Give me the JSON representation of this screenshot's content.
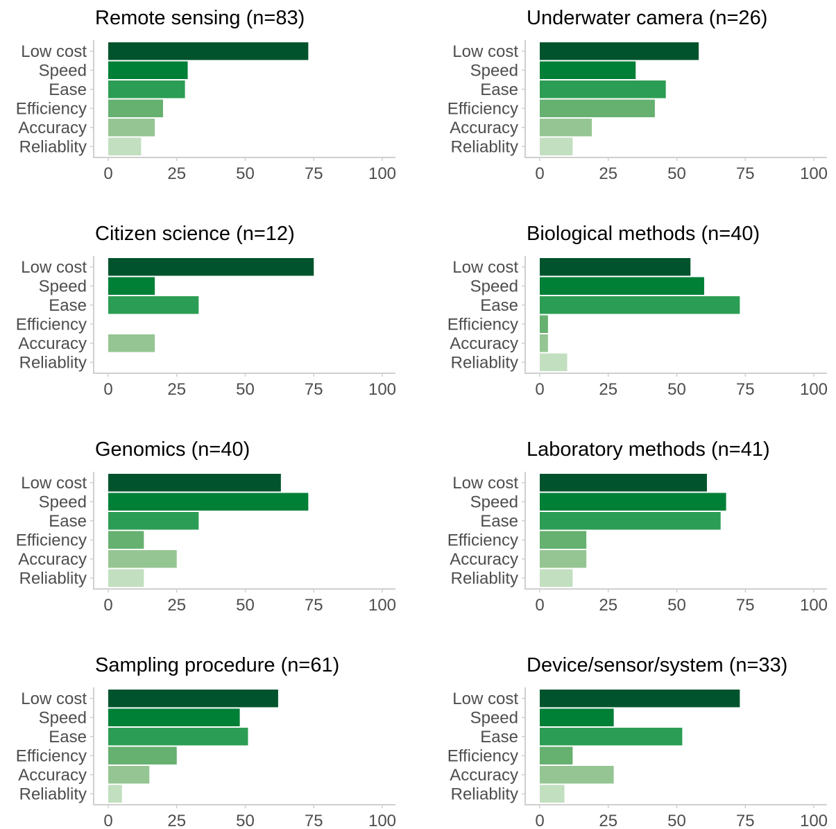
{
  "chart_data": [
    {
      "type": "bar",
      "orientation": "horizontal",
      "title": "Remote sensing (n=83)",
      "categories": [
        "Low cost",
        "Speed",
        "Ease",
        "Efficiency",
        "Accuracy",
        "Reliablity"
      ],
      "values": [
        73,
        29,
        28,
        20,
        17,
        12
      ],
      "xlim": [
        0,
        100
      ],
      "xticks": [
        "0",
        "25",
        "50",
        "75",
        "100"
      ]
    },
    {
      "type": "bar",
      "orientation": "horizontal",
      "title": "Underwater camera (n=26)",
      "categories": [
        "Low cost",
        "Speed",
        "Ease",
        "Efficiency",
        "Accuracy",
        "Reliablity"
      ],
      "values": [
        58,
        35,
        46,
        42,
        19,
        12
      ],
      "xlim": [
        0,
        100
      ],
      "xticks": [
        "0",
        "25",
        "50",
        "75",
        "100"
      ]
    },
    {
      "type": "bar",
      "orientation": "horizontal",
      "title": "Citizen science (n=12)",
      "categories": [
        "Low cost",
        "Speed",
        "Ease",
        "Efficiency",
        "Accuracy",
        "Reliablity"
      ],
      "values": [
        75,
        17,
        33,
        0,
        17,
        0
      ],
      "xlim": [
        0,
        100
      ],
      "xticks": [
        "0",
        "25",
        "50",
        "75",
        "100"
      ]
    },
    {
      "type": "bar",
      "orientation": "horizontal",
      "title": "Biological methods (n=40)",
      "categories": [
        "Low cost",
        "Speed",
        "Ease",
        "Efficiency",
        "Accuracy",
        "Reliablity"
      ],
      "values": [
        55,
        60,
        73,
        3,
        3,
        10
      ],
      "xlim": [
        0,
        100
      ],
      "xticks": [
        "0",
        "25",
        "50",
        "75",
        "100"
      ]
    },
    {
      "type": "bar",
      "orientation": "horizontal",
      "title": "Genomics (n=40)",
      "categories": [
        "Low cost",
        "Speed",
        "Ease",
        "Efficiency",
        "Accuracy",
        "Reliablity"
      ],
      "values": [
        63,
        73,
        33,
        13,
        25,
        13
      ],
      "xlim": [
        0,
        100
      ],
      "xticks": [
        "0",
        "25",
        "50",
        "75",
        "100"
      ]
    },
    {
      "type": "bar",
      "orientation": "horizontal",
      "title": "Laboratory methods (n=41)",
      "categories": [
        "Low cost",
        "Speed",
        "Ease",
        "Efficiency",
        "Accuracy",
        "Reliablity"
      ],
      "values": [
        61,
        68,
        66,
        17,
        17,
        12
      ],
      "xlim": [
        0,
        100
      ],
      "xticks": [
        "0",
        "25",
        "50",
        "75",
        "100"
      ]
    },
    {
      "type": "bar",
      "orientation": "horizontal",
      "title": "Sampling procedure (n=61)",
      "categories": [
        "Low cost",
        "Speed",
        "Ease",
        "Efficiency",
        "Accuracy",
        "Reliablity"
      ],
      "values": [
        62,
        48,
        51,
        25,
        15,
        5
      ],
      "xlim": [
        0,
        100
      ],
      "xticks": [
        "0",
        "25",
        "50",
        "75",
        "100"
      ]
    },
    {
      "type": "bar",
      "orientation": "horizontal",
      "title": "Device/sensor/system (n=33)",
      "categories": [
        "Low cost",
        "Speed",
        "Ease",
        "Efficiency",
        "Accuracy",
        "Reliablity"
      ],
      "values": [
        73,
        27,
        52,
        12,
        27,
        9
      ],
      "xlim": [
        0,
        100
      ],
      "xticks": [
        "0",
        "25",
        "50",
        "75",
        "100"
      ]
    }
  ],
  "colors": {
    "categories": [
      "#00532c",
      "#007f37",
      "#2c9d54",
      "#66b070",
      "#95c593",
      "#c2dfc0"
    ],
    "axis": "#cfcfcf",
    "label": "#4d4d4d",
    "title": "#000000"
  },
  "grid": false,
  "legend": "none"
}
